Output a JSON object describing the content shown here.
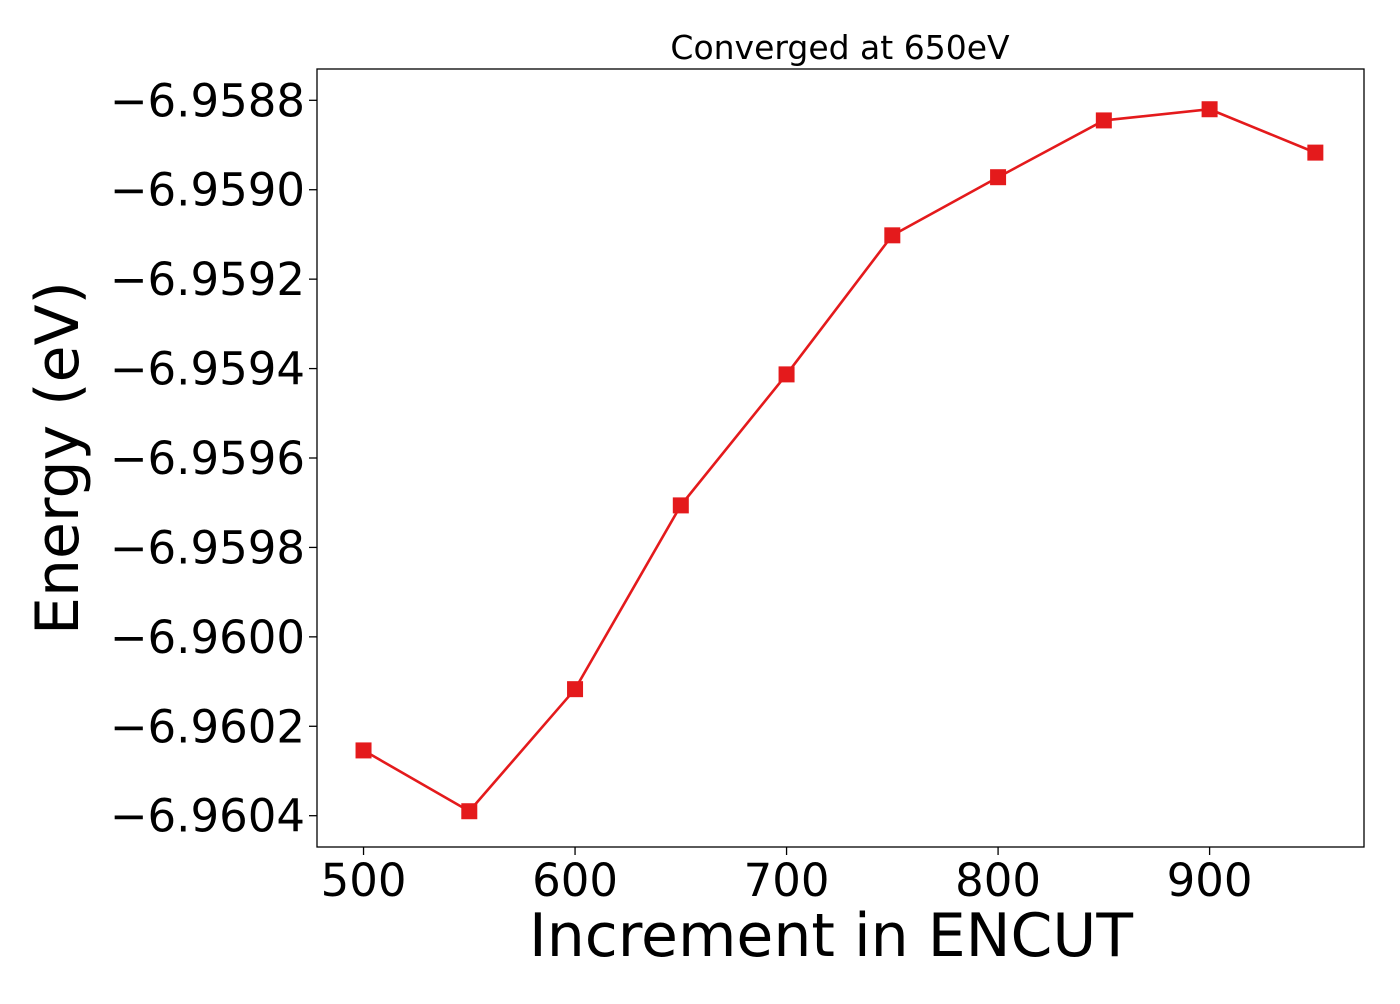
{
  "chart_data": {
    "type": "line",
    "title": "Converged at 650eV",
    "xlabel": "Increment in ENCUT",
    "ylabel": "Energy (eV)",
    "x": [
      500,
      550,
      600,
      650,
      700,
      750,
      800,
      850,
      900,
      950
    ],
    "x_ticks": [
      500,
      600,
      700,
      800,
      900
    ],
    "x_tick_labels": [
      "500",
      "600",
      "700",
      "800",
      "900"
    ],
    "xlim": [
      478,
      973
    ],
    "y_ticks": [
      -6.9588,
      -6.959,
      -6.9592,
      -6.9594,
      -6.9596,
      -6.9598,
      -6.96,
      -6.9602,
      -6.9604
    ],
    "y_tick_labels": [
      "−6.9588",
      "−6.9590",
      "−6.9592",
      "−6.9594",
      "−6.9596",
      "−6.9598",
      "−6.9600",
      "−6.9602",
      "−6.9604"
    ],
    "ylim": [
      -6.96047,
      -6.95873
    ],
    "series": [
      {
        "values": [
          -6.960254,
          -6.96039,
          -6.960117,
          -6.959706,
          -6.959413,
          -6.959102,
          -6.958972,
          -6.958845,
          -6.95882,
          -6.958917
        ],
        "color": "#e41a1c",
        "marker": "square"
      }
    ],
    "grid": false,
    "legend": "none"
  }
}
